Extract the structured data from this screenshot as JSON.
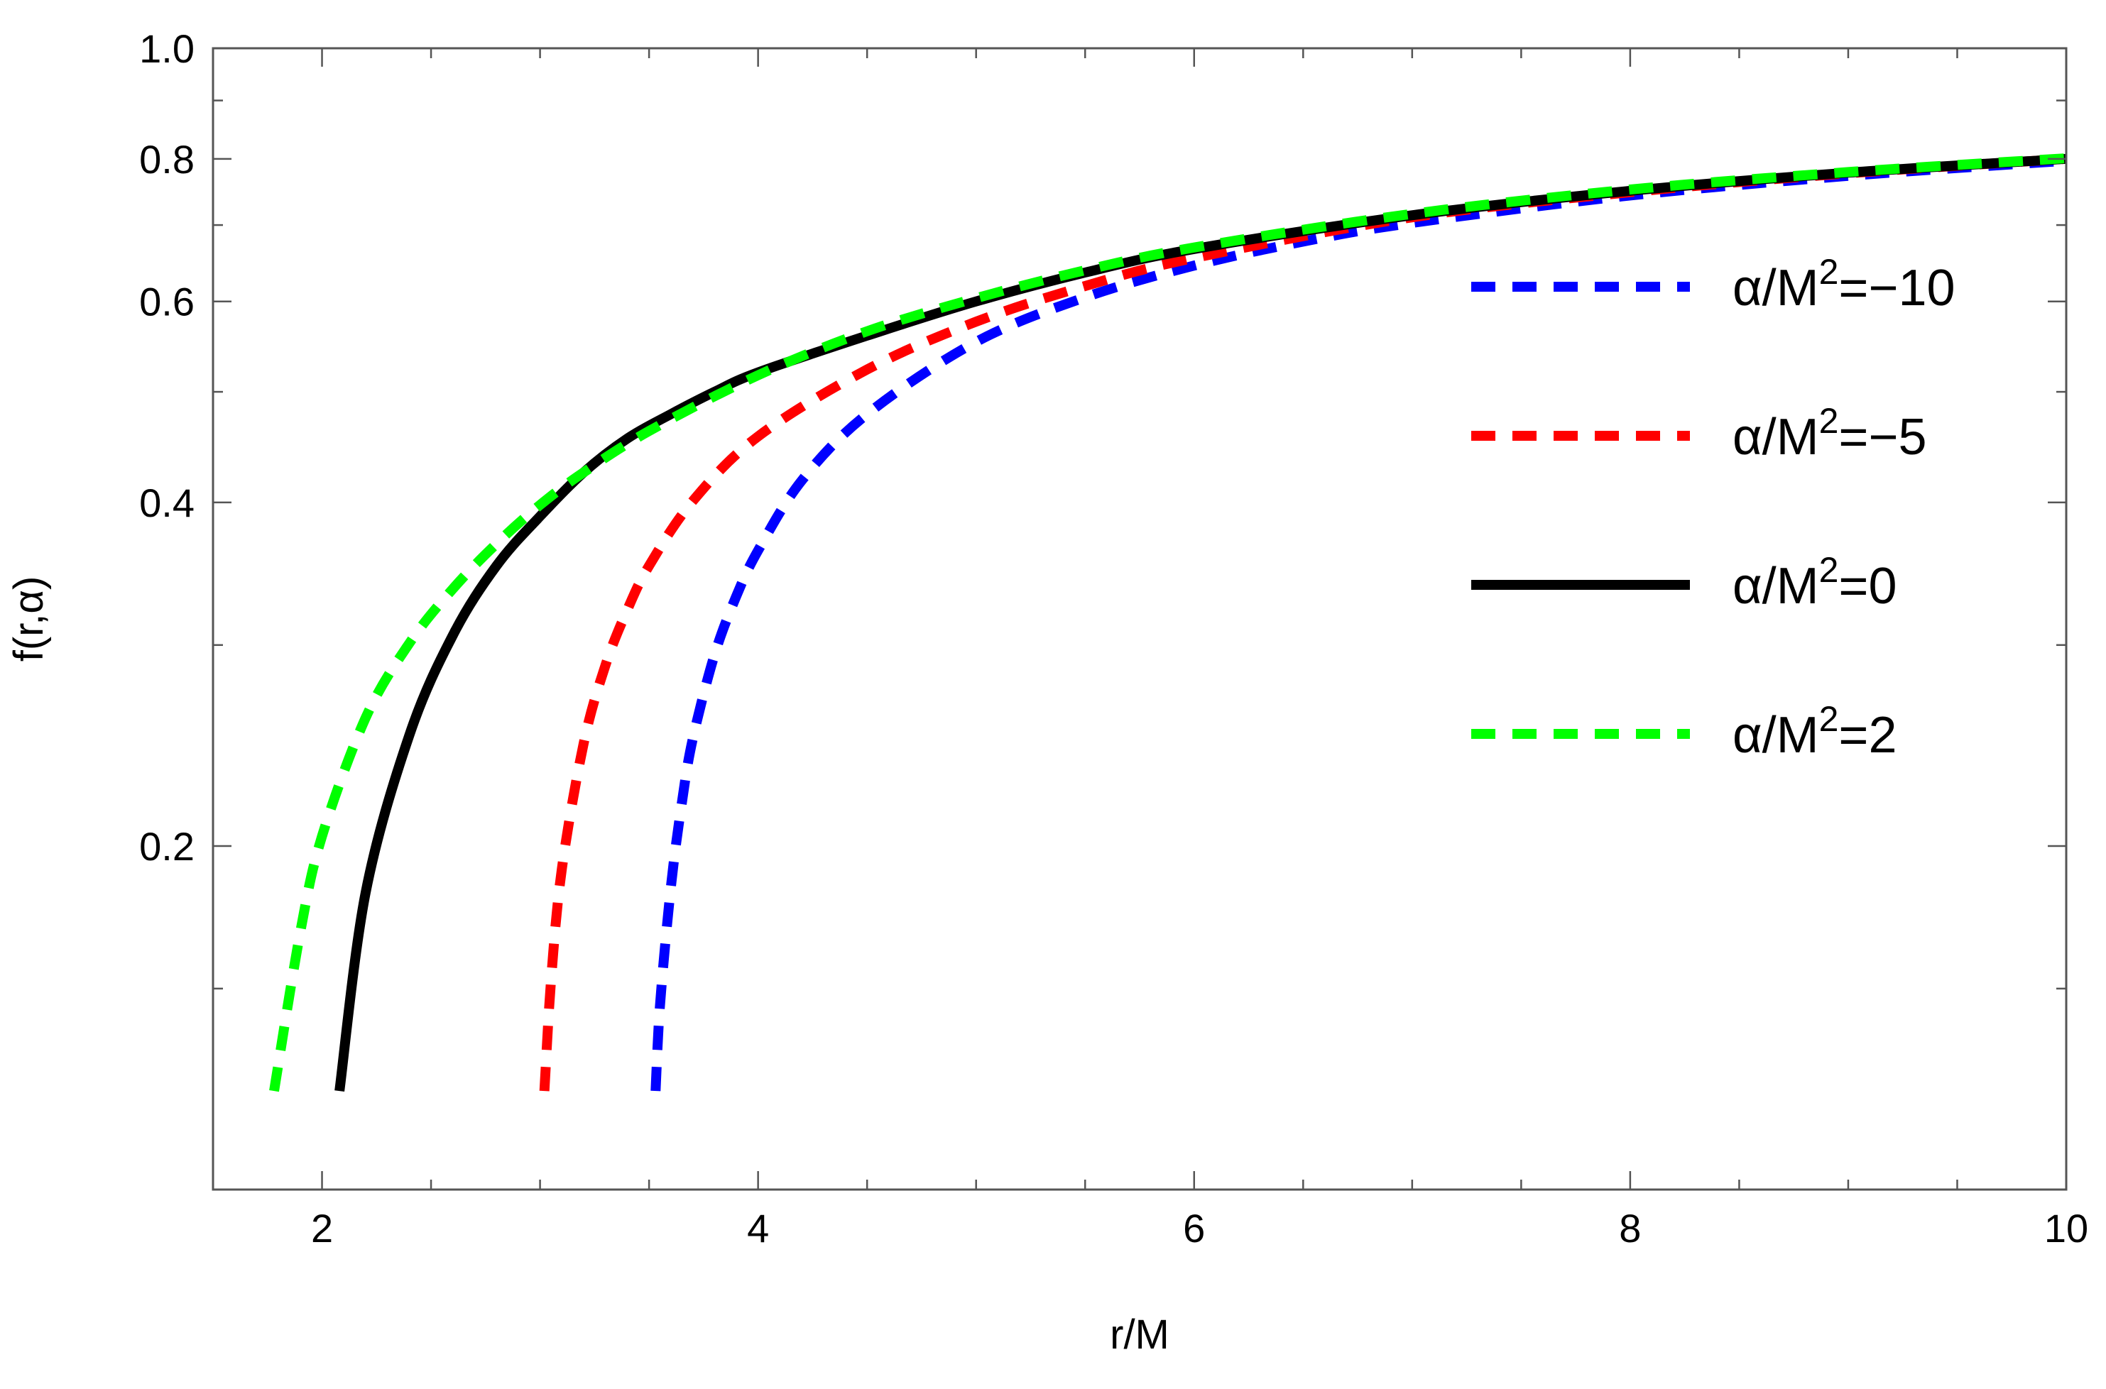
{
  "chart_data": {
    "type": "line",
    "title": "",
    "xlabel": "r/M",
    "ylabel": "f(r,α)",
    "xlim": [
      1.5,
      10
    ],
    "ylim": [
      0.1,
      1.0
    ],
    "y_scale": "log",
    "grid": false,
    "legend_position": "right",
    "x_ticks": [
      {
        "value": 2,
        "label": "2"
      },
      {
        "value": 4,
        "label": "4"
      },
      {
        "value": 6,
        "label": "6"
      },
      {
        "value": 8,
        "label": "8"
      },
      {
        "value": 10,
        "label": "10"
      }
    ],
    "y_ticks": [
      {
        "value": 0.2,
        "label": "0.2"
      },
      {
        "value": 0.4,
        "label": "0.4"
      },
      {
        "value": 0.6,
        "label": "0.6"
      },
      {
        "value": 0.8,
        "label": "0.8"
      },
      {
        "value": 1.0,
        "label": "1.0"
      }
    ],
    "x_minor_ticks": [
      2.5,
      3,
      3.5,
      4.5,
      5,
      5.5,
      6.5,
      7,
      7.5,
      8.5,
      9,
      9.5
    ],
    "y_minor_ticks": [
      0.15,
      0.3,
      0.5,
      0.7,
      0.9
    ],
    "series": [
      {
        "name": "α/M²=−10",
        "legend": {
          "base": "α/M",
          "sup": "2",
          "rest": "=−10"
        },
        "color": "#0000ff",
        "dash": "dashed",
        "r_start": 3.53,
        "x": [
          3.53,
          3.55,
          3.6,
          3.65,
          3.7,
          3.8,
          3.9,
          4.0,
          4.2,
          4.5,
          5.0,
          5.5,
          6.0,
          6.5,
          7.0,
          8.0,
          9.0,
          10.0
        ],
        "y": [
          0.122,
          0.145,
          0.184,
          0.218,
          0.248,
          0.294,
          0.331,
          0.363,
          0.418,
          0.478,
          0.553,
          0.605,
          0.645,
          0.677,
          0.703,
          0.743,
          0.773,
          0.797
        ]
      },
      {
        "name": "α/M²=−5",
        "legend": {
          "base": "α/M",
          "sup": "2",
          "rest": "=−5"
        },
        "color": "#ff0000",
        "dash": "dashed",
        "r_start": 3.02,
        "x": [
          3.02,
          3.05,
          3.1,
          3.2,
          3.3,
          3.4,
          3.5,
          3.7,
          4.0,
          4.5,
          5.0,
          5.5,
          6.0,
          7.0,
          8.0,
          9.0,
          10.0
        ],
        "y": [
          0.122,
          0.152,
          0.191,
          0.246,
          0.288,
          0.322,
          0.352,
          0.401,
          0.457,
          0.523,
          0.576,
          0.619,
          0.655,
          0.711,
          0.748,
          0.777,
          0.8
        ]
      },
      {
        "name": "α/M²=0",
        "legend": {
          "base": "α/M",
          "sup": "2",
          "rest": "=0"
        },
        "color": "#000000",
        "dash": "solid",
        "r_start": 2.08,
        "x": [
          2.08,
          2.2,
          2.4,
          2.6,
          2.8,
          3.0,
          3.2,
          3.4,
          3.6,
          3.8,
          4.0,
          4.5,
          5.0,
          5.5,
          6.0,
          7.0,
          8.0,
          9.0,
          10.0
        ],
        "y": [
          0.122,
          0.182,
          0.25,
          0.306,
          0.352,
          0.389,
          0.425,
          0.455,
          0.478,
          0.5,
          0.52,
          0.56,
          0.6,
          0.636,
          0.667,
          0.714,
          0.75,
          0.778,
          0.8
        ]
      },
      {
        "name": "α/M²=2",
        "legend": {
          "base": "α/M",
          "sup": "2",
          "rest": "=2"
        },
        "color": "#00ff00",
        "dash": "dashed",
        "r_start": 1.78,
        "x": [
          1.78,
          1.9,
          2.0,
          2.2,
          2.4,
          2.6,
          2.8,
          3.0,
          3.2,
          3.5,
          4.0,
          4.5,
          5.0,
          5.5,
          6.0,
          7.0,
          8.0,
          9.0,
          10.0
        ],
        "y": [
          0.122,
          0.168,
          0.204,
          0.259,
          0.301,
          0.336,
          0.368,
          0.398,
          0.425,
          0.462,
          0.517,
          0.565,
          0.604,
          0.639,
          0.669,
          0.716,
          0.752,
          0.779,
          0.801
        ]
      }
    ]
  }
}
